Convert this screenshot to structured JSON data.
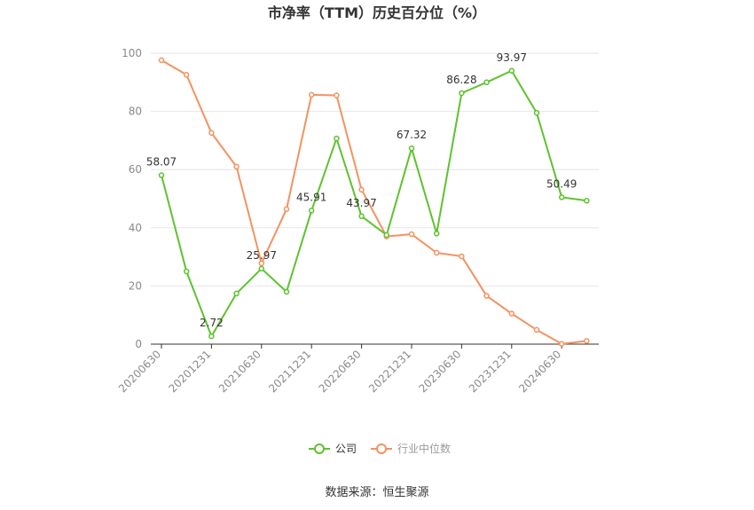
{
  "chart_data": {
    "type": "line",
    "title": "市净率（TTM）历史百分位（%）",
    "xlabel": "",
    "ylabel": "",
    "ylim": [
      0,
      100
    ],
    "yticks": [
      0,
      20,
      40,
      60,
      80,
      100
    ],
    "grid": true,
    "legend_position": "bottom",
    "x_tick_labels": [
      "20200630",
      "20201231",
      "20210630",
      "20211231",
      "20220630",
      "20221231",
      "20230630",
      "20231231",
      "20240630"
    ],
    "x": [
      "20200630",
      "20200930",
      "20201231",
      "20210331",
      "20210630",
      "20210930",
      "20211231",
      "20220331",
      "20220630",
      "20220930",
      "20221231",
      "20230331",
      "20230630",
      "20230930",
      "20231231",
      "20240331",
      "20240630",
      "20240930"
    ],
    "series": [
      {
        "name": "公司",
        "color": "#5ec22e",
        "values": [
          58.07,
          25.0,
          2.72,
          17.4,
          25.97,
          18.0,
          45.91,
          70.7,
          43.97,
          37.5,
          67.32,
          38.0,
          86.28,
          90.0,
          93.97,
          79.5,
          50.49,
          49.3
        ],
        "labels": [
          {
            "index": 0,
            "text": "58.07"
          },
          {
            "index": 2,
            "text": "2.72"
          },
          {
            "index": 4,
            "text": "25.97"
          },
          {
            "index": 6,
            "text": "45.91"
          },
          {
            "index": 8,
            "text": "43.97"
          },
          {
            "index": 10,
            "text": "67.32"
          },
          {
            "index": 12,
            "text": "86.28"
          },
          {
            "index": 14,
            "text": "93.97"
          },
          {
            "index": 16,
            "text": "50.49"
          }
        ]
      },
      {
        "name": "行业中位数",
        "color": "#f4925f",
        "values": [
          97.6,
          92.6,
          72.6,
          61.0,
          27.8,
          46.4,
          85.7,
          85.5,
          53.1,
          37.0,
          37.8,
          31.4,
          30.2,
          16.6,
          10.5,
          4.9,
          0.1,
          1.1
        ]
      }
    ]
  },
  "source": "数据来源：恒生聚源"
}
